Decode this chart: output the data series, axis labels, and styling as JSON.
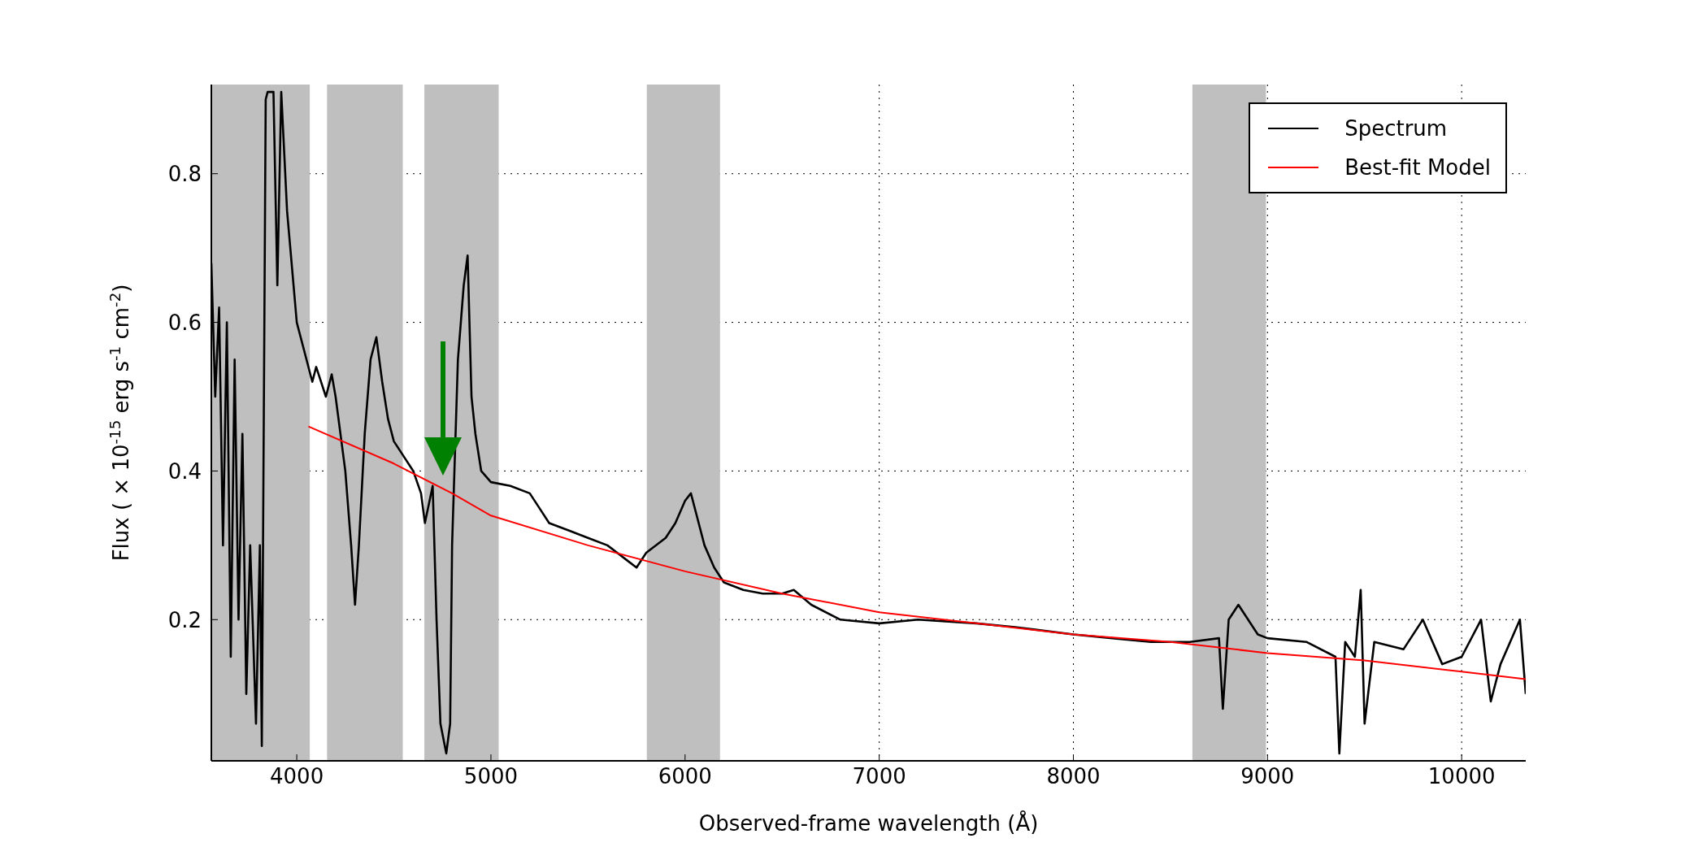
{
  "chart_data": {
    "type": "line",
    "xlabel": "Observed-frame wavelength (Å)",
    "ylabel": "Flux ( × 10$^{-15}$ erg s$^{-1}$ cm$^{-2}$)",
    "xlim": [
      3560,
      10330
    ],
    "ylim": [
      0.01,
      0.92
    ],
    "xticks": [
      4000,
      5000,
      6000,
      7000,
      8000,
      9000,
      10000
    ],
    "yticks": [
      0.2,
      0.4,
      0.6,
      0.8
    ],
    "grid": true,
    "legend": "top right",
    "line_style": "solid",
    "marker": "none",
    "bands": [
      {
        "axis": "x",
        "from": 3560,
        "to": 4067,
        "color": "#bfbfbf"
      },
      {
        "axis": "x",
        "from": 4156,
        "to": 4546,
        "color": "#bfbfbf"
      },
      {
        "axis": "x",
        "from": 4657,
        "to": 5040,
        "color": "#bfbfbf"
      },
      {
        "axis": "x",
        "from": 5803,
        "to": 6180,
        "color": "#bfbfbf"
      },
      {
        "axis": "x",
        "from": 8613,
        "to": 8992,
        "color": "#bfbfbf"
      }
    ],
    "series": [
      {
        "name": "Spectrum",
        "color": "#000000",
        "x": [
          3560,
          3580,
          3600,
          3620,
          3640,
          3660,
          3680,
          3700,
          3720,
          3740,
          3760,
          3790,
          3810,
          3820,
          3840,
          3850,
          3880,
          3900,
          3920,
          3950,
          4000,
          4050,
          4080,
          4100,
          4150,
          4180,
          4200,
          4250,
          4280,
          4300,
          4320,
          4350,
          4380,
          4410,
          4440,
          4470,
          4500,
          4550,
          4600,
          4640,
          4660,
          4700,
          4720,
          4740,
          4770,
          4790,
          4800,
          4830,
          4860,
          4880,
          4900,
          4920,
          4950,
          5000,
          5100,
          5200,
          5250,
          5300,
          5400,
          5500,
          5600,
          5700,
          5750,
          5800,
          5900,
          5950,
          6000,
          6030,
          6060,
          6100,
          6150,
          6200,
          6300,
          6400,
          6500,
          6560,
          6650,
          6800,
          7000,
          7200,
          7500,
          7700,
          8000,
          8200,
          8400,
          8600,
          8750,
          8770,
          8800,
          8850,
          8900,
          8950,
          9000,
          9200,
          9350,
          9370,
          9400,
          9450,
          9480,
          9500,
          9550,
          9700,
          9800,
          9900,
          10000,
          10100,
          10150,
          10200,
          10300,
          10330
        ],
        "values": [
          0.68,
          0.5,
          0.62,
          0.3,
          0.6,
          0.15,
          0.55,
          0.2,
          0.45,
          0.1,
          0.3,
          0.06,
          0.3,
          0.03,
          0.9,
          0.91,
          0.91,
          0.65,
          0.91,
          0.75,
          0.6,
          0.55,
          0.52,
          0.54,
          0.5,
          0.53,
          0.5,
          0.4,
          0.3,
          0.22,
          0.3,
          0.45,
          0.55,
          0.58,
          0.52,
          0.47,
          0.44,
          0.42,
          0.4,
          0.37,
          0.33,
          0.38,
          0.2,
          0.06,
          0.02,
          0.06,
          0.3,
          0.55,
          0.65,
          0.69,
          0.5,
          0.45,
          0.4,
          0.385,
          0.38,
          0.37,
          0.35,
          0.33,
          0.32,
          0.31,
          0.3,
          0.28,
          0.27,
          0.29,
          0.31,
          0.33,
          0.36,
          0.37,
          0.34,
          0.3,
          0.27,
          0.25,
          0.24,
          0.235,
          0.235,
          0.24,
          0.22,
          0.2,
          0.195,
          0.2,
          0.195,
          0.19,
          0.18,
          0.175,
          0.17,
          0.17,
          0.175,
          0.08,
          0.2,
          0.22,
          0.2,
          0.18,
          0.175,
          0.17,
          0.15,
          0.02,
          0.17,
          0.15,
          0.24,
          0.06,
          0.17,
          0.16,
          0.2,
          0.14,
          0.15,
          0.2,
          0.09,
          0.14,
          0.2,
          0.1
        ]
      },
      {
        "name": "Best-fit Model",
        "color": "#ff0000",
        "x": [
          4060,
          4500,
          4800,
          5000,
          5500,
          6000,
          6500,
          7000,
          7500,
          8000,
          8500,
          9000,
          9500,
          10000,
          10330
        ],
        "values": [
          0.46,
          0.41,
          0.37,
          0.34,
          0.3,
          0.265,
          0.235,
          0.21,
          0.195,
          0.18,
          0.17,
          0.155,
          0.145,
          0.13,
          0.12
        ]
      }
    ]
  }
}
